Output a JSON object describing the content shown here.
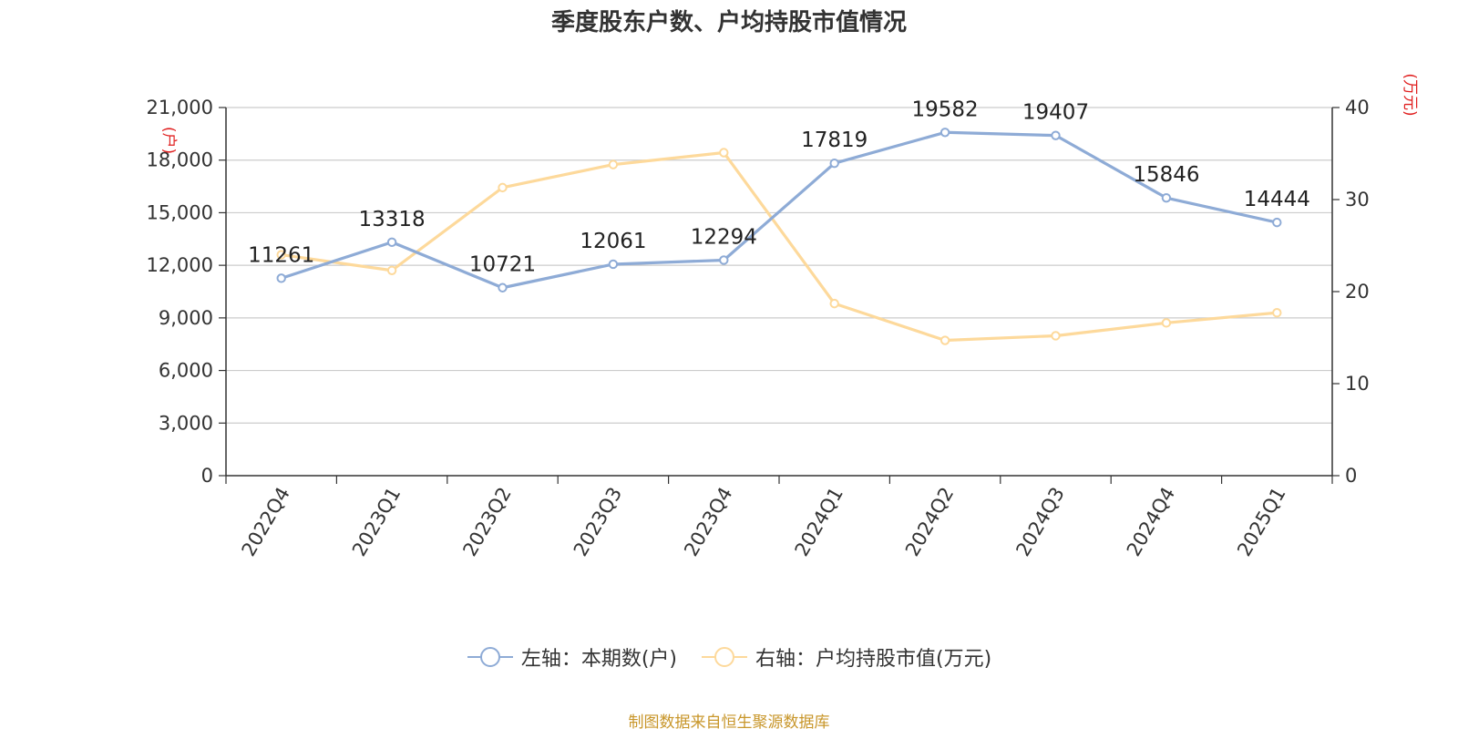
{
  "chart_data": {
    "type": "line",
    "title": "季度股东户数、户均持股市值情况",
    "categories": [
      "2022Q4",
      "2023Q1",
      "2023Q2",
      "2023Q3",
      "2023Q4",
      "2024Q1",
      "2024Q2",
      "2024Q3",
      "2024Q4",
      "2025Q1"
    ],
    "y_left": {
      "unit_label": "(户)",
      "range": [
        0,
        21000
      ],
      "ticks": [
        "0",
        "3,000",
        "6,000",
        "9,000",
        "12,000",
        "15,000",
        "18,000",
        "21,000"
      ]
    },
    "y_right": {
      "unit_label": "(万元)",
      "range": [
        0,
        40
      ],
      "ticks": [
        "0",
        "10",
        "20",
        "30",
        "40"
      ]
    },
    "series": [
      {
        "name": "左轴：本期数(户)",
        "axis": "left",
        "color": "#8eabd6",
        "values": [
          11261,
          13318,
          10721,
          12061,
          12294,
          17819,
          19582,
          19407,
          15846,
          14444
        ],
        "show_labels": true
      },
      {
        "name": "右轴：户均持股市值(万元)",
        "axis": "right",
        "color": "#fdd99b",
        "values": [
          24.0,
          22.3,
          31.3,
          33.8,
          35.1,
          18.7,
          14.7,
          15.2,
          16.6,
          17.7
        ],
        "show_labels": false
      }
    ],
    "grid": true,
    "legend_position": "bottom"
  },
  "source_note": "制图数据来自恒生聚源数据库"
}
